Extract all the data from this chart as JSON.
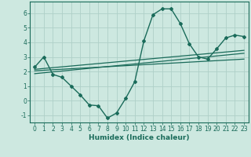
{
  "xlabel": "Humidex (Indice chaleur)",
  "ylabel": "",
  "background_color": "#cde8e0",
  "grid_color": "#aed0c8",
  "line_color": "#1a6b5a",
  "xlim": [
    -0.5,
    23.5
  ],
  "ylim": [
    -1.5,
    6.8
  ],
  "xticks": [
    0,
    1,
    2,
    3,
    4,
    5,
    6,
    7,
    8,
    9,
    10,
    11,
    12,
    13,
    14,
    15,
    16,
    17,
    18,
    19,
    20,
    21,
    22,
    23
  ],
  "yticks": [
    -1,
    0,
    1,
    2,
    3,
    4,
    5,
    6
  ],
  "curve1_x": [
    0,
    1,
    2,
    3,
    4,
    5,
    6,
    7,
    8,
    9,
    10,
    11,
    12,
    13,
    14,
    15,
    16,
    17,
    18,
    19,
    20,
    21,
    22,
    23
  ],
  "curve1_y": [
    2.3,
    3.0,
    1.8,
    1.6,
    1.0,
    0.4,
    -0.3,
    -0.35,
    -1.2,
    -0.85,
    0.15,
    1.3,
    4.1,
    5.9,
    6.3,
    6.3,
    5.3,
    3.9,
    3.0,
    2.85,
    3.55,
    4.3,
    4.5,
    4.4
  ],
  "line1_x": [
    0,
    23
  ],
  "line1_y": [
    1.85,
    3.25
  ],
  "line2_x": [
    0,
    23
  ],
  "line2_y": [
    2.05,
    2.85
  ],
  "line3_x": [
    0,
    23
  ],
  "line3_y": [
    2.15,
    3.45
  ],
  "tick_fontsize": 5.5,
  "xlabel_fontsize": 6.5
}
